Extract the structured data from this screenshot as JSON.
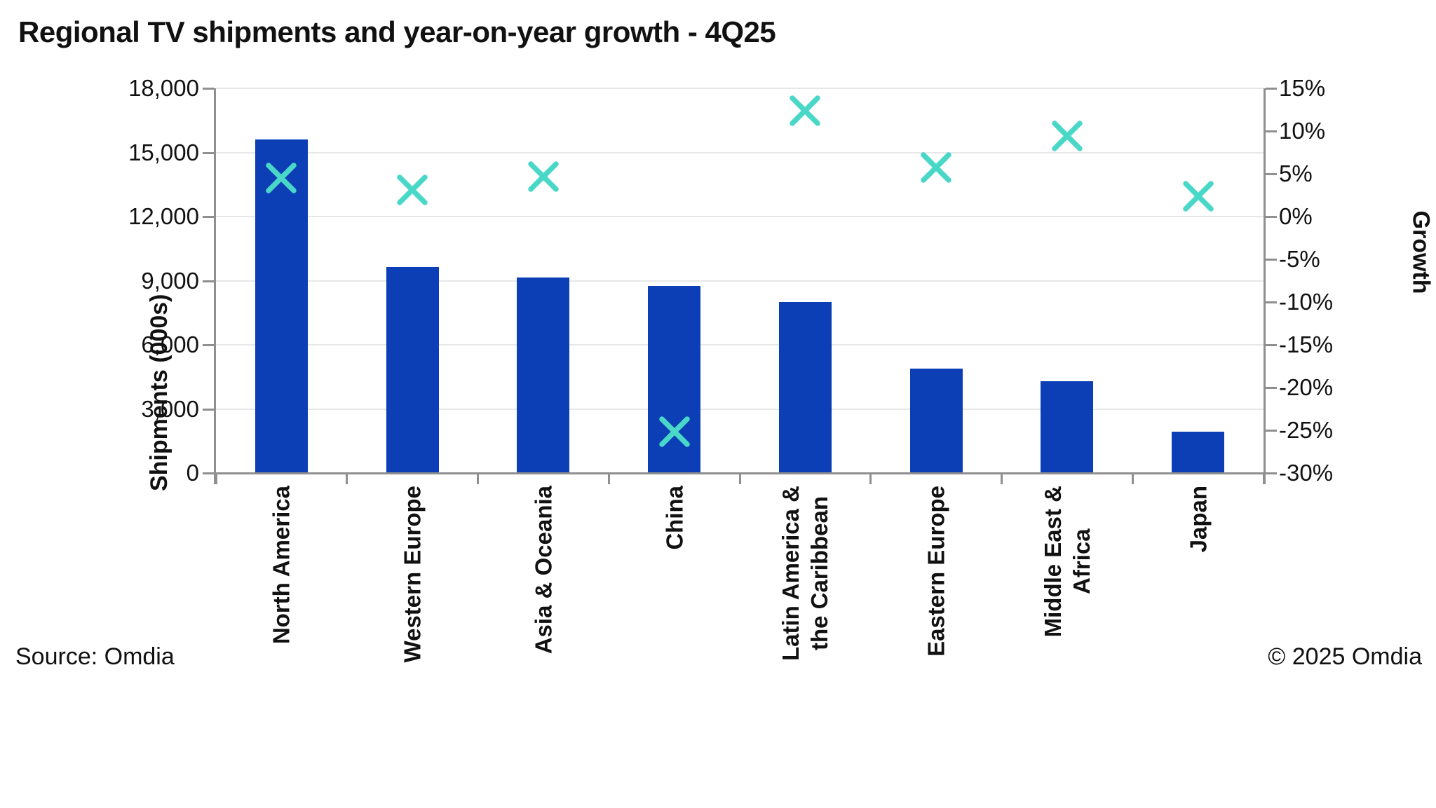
{
  "chart_data": {
    "type": "bar",
    "title": "Regional TV shipments and year-on-year growth - 4Q25",
    "categories": [
      "North America",
      "Western Europe",
      "Asia & Oceania",
      "China",
      "Latin America &\nthe Caribbean",
      "Eastern Europe",
      "Middle East &\nAfrica",
      "Japan"
    ],
    "series": [
      {
        "name": "Shipments (000s)",
        "type": "bar",
        "axis": "left",
        "values": [
          15600,
          9650,
          9150,
          8770,
          7990,
          4870,
          4300,
          1950
        ]
      },
      {
        "name": "Growth",
        "type": "scatter",
        "marker": "x",
        "axis": "right",
        "unit": "%",
        "values": [
          4.5,
          3.1,
          4.7,
          -25.2,
          12.4,
          5.7,
          9.4,
          2.4
        ]
      }
    ],
    "left_axis": {
      "title": "Shipments (000s)",
      "min": 0,
      "max": 18000,
      "step": 3000,
      "tick_labels": [
        "18,000",
        "15,000",
        "12,000",
        "9,000",
        "6,000",
        "3,000",
        "0"
      ]
    },
    "right_axis": {
      "title": "Growth",
      "min": -30,
      "max": 15,
      "step": 5,
      "tick_labels": [
        "15%",
        "10%",
        "5%",
        "0%",
        "-5%",
        "-10%",
        "-15%",
        "-20%",
        "-25%",
        "-30%"
      ]
    },
    "grid": "horizontal",
    "legend": "none",
    "colors": {
      "bar": "#0c3eb5",
      "marker": "#49d8c8",
      "gridline": "#e7e7e7",
      "axis": "#8f8f8f",
      "text": "#111111"
    }
  },
  "footer": {
    "source": "Source: Omdia",
    "copyright": "© 2025 Omdia"
  }
}
